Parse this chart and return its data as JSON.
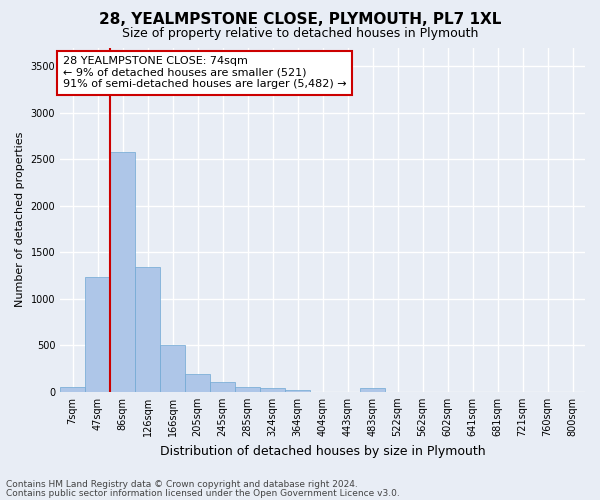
{
  "title": "28, YEALMPSTONE CLOSE, PLYMOUTH, PL7 1XL",
  "subtitle": "Size of property relative to detached houses in Plymouth",
  "xlabel": "Distribution of detached houses by size in Plymouth",
  "ylabel": "Number of detached properties",
  "bar_labels": [
    "7sqm",
    "47sqm",
    "86sqm",
    "126sqm",
    "166sqm",
    "205sqm",
    "245sqm",
    "285sqm",
    "324sqm",
    "364sqm",
    "404sqm",
    "443sqm",
    "483sqm",
    "522sqm",
    "562sqm",
    "602sqm",
    "641sqm",
    "681sqm",
    "721sqm",
    "760sqm",
    "800sqm"
  ],
  "bar_values": [
    50,
    1230,
    2580,
    1340,
    500,
    195,
    105,
    50,
    45,
    15,
    0,
    0,
    45,
    0,
    0,
    0,
    0,
    0,
    0,
    0,
    0
  ],
  "bar_color": "#aec6e8",
  "bar_edge_color": "#6fa8d4",
  "highlight_color": "#cc0000",
  "ylim": [
    0,
    3700
  ],
  "yticks": [
    0,
    500,
    1000,
    1500,
    2000,
    2500,
    3000,
    3500
  ],
  "annotation_line1": "28 YEALMPSTONE CLOSE: 74sqm",
  "annotation_line2": "← 9% of detached houses are smaller (521)",
  "annotation_line3": "91% of semi-detached houses are larger (5,482) →",
  "annotation_box_color": "#ffffff",
  "annotation_box_edgecolor": "#cc0000",
  "footnote1": "Contains HM Land Registry data © Crown copyright and database right 2024.",
  "footnote2": "Contains public sector information licensed under the Open Government Licence v3.0.",
  "bg_color": "#e8edf5",
  "plot_bg_color": "#e8edf5",
  "grid_color": "#ffffff",
  "title_fontsize": 11,
  "subtitle_fontsize": 9,
  "ylabel_fontsize": 8,
  "xlabel_fontsize": 9,
  "tick_fontsize": 7,
  "annotation_fontsize": 8,
  "footnote_fontsize": 6.5
}
